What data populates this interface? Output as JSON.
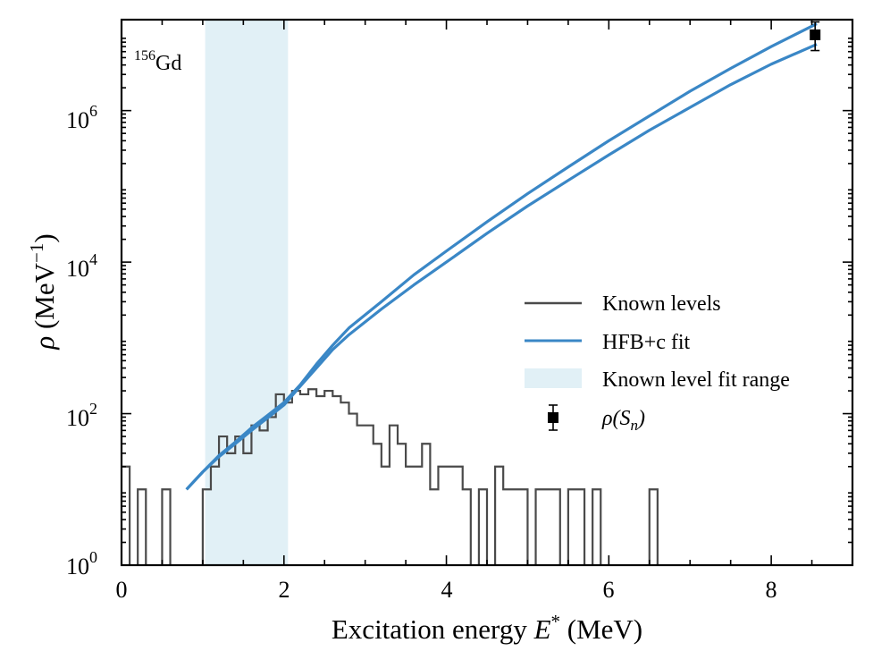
{
  "chart_data": {
    "type": "line",
    "yscale": "log",
    "xlim": [
      0,
      9
    ],
    "ylim_exponent": [
      0,
      7.2
    ],
    "xlabel": "Excitation energy",
    "xlabel_symbol": "E",
    "xlabel_sup": "*",
    "xlabel_unit": "(MeV)",
    "ylabel_symbol": "ρ",
    "ylabel_unit": "(MeV",
    "ylabel_sup": "−1",
    "x_ticks": [
      0,
      2,
      4,
      6,
      8
    ],
    "x_tick_labels": [
      "0",
      "2",
      "4",
      "6",
      "8"
    ],
    "y_tick_exponents": [
      0,
      2,
      4,
      6
    ],
    "y_tick_base": "10",
    "y_tick_sups": [
      "0",
      "2",
      "4",
      "6"
    ],
    "annotation": {
      "mass": "156",
      "element": "Gd"
    },
    "colors": {
      "known": "#4a4a4a",
      "hfb": "#3a87c6",
      "range": "#e1f0f6",
      "point": "#000000"
    },
    "legend": {
      "known_levels": "Known levels",
      "hfb": "HFB+c fit",
      "range": "Known level fit range",
      "rho_sn_symbol": "ρ",
      "rho_sn_open": "(S",
      "rho_sn_sub": "n",
      "rho_sn_close": ")"
    },
    "fit_range": [
      1.03,
      2.05
    ],
    "known_levels": {
      "bin_edges": [
        0.0,
        0.1,
        0.2,
        0.3,
        0.4,
        0.5,
        0.6,
        0.7,
        0.8,
        0.9,
        1.0,
        1.1,
        1.2,
        1.3,
        1.4,
        1.5,
        1.6,
        1.7,
        1.8,
        1.9,
        2.0,
        2.1,
        2.2,
        2.3,
        2.4,
        2.5,
        2.6,
        2.7,
        2.8,
        2.9,
        3.0,
        3.1,
        3.2,
        3.3,
        3.4,
        3.5,
        3.6,
        3.7,
        3.8,
        3.9,
        4.0,
        4.1,
        4.2,
        4.3,
        4.4,
        4.5,
        4.6,
        4.7,
        4.8,
        4.9,
        5.0,
        5.1,
        5.2,
        5.3,
        5.4,
        5.5,
        5.6,
        5.7,
        5.8,
        5.9,
        6.0,
        6.1,
        6.2,
        6.3,
        6.4,
        6.5,
        6.6
      ],
      "counts": [
        20,
        0,
        10,
        0,
        0,
        10,
        0,
        0,
        0,
        0,
        10,
        20,
        50,
        30,
        50,
        30,
        70,
        60,
        90,
        180,
        140,
        200,
        180,
        210,
        170,
        200,
        170,
        140,
        100,
        70,
        70,
        40,
        20,
        70,
        40,
        20,
        20,
        40,
        10,
        20,
        20,
        20,
        10,
        0,
        10,
        0,
        20,
        10,
        10,
        10,
        0,
        10,
        10,
        10,
        0,
        10,
        10,
        0,
        10,
        0,
        0,
        0,
        0,
        0,
        0,
        10,
        0
      ]
    },
    "hfb_upper": {
      "x": [
        0.8,
        1.0,
        1.2,
        1.4,
        1.6,
        1.8,
        2.0,
        2.2,
        2.4,
        2.6,
        2.8,
        3.2,
        3.6,
        4.0,
        4.5,
        5.0,
        5.5,
        6.0,
        6.5,
        7.0,
        7.5,
        8.0,
        8.56
      ],
      "y": [
        10,
        17,
        28,
        42,
        65,
        95,
        140,
        240,
        450,
        800,
        1350,
        3000,
        6800,
        14000,
        34000,
        80000,
        180000,
        400000,
        850000,
        1800000,
        3600000,
        7000000,
        14000000
      ]
    },
    "hfb_lower": {
      "x": [
        0.8,
        1.0,
        1.2,
        1.4,
        1.6,
        1.8,
        2.0,
        2.2,
        2.4,
        2.6,
        2.8,
        3.2,
        3.6,
        4.0,
        4.5,
        5.0,
        5.5,
        6.0,
        6.5,
        7.0,
        7.5,
        8.0,
        8.56
      ],
      "y": [
        10,
        17,
        27,
        40,
        60,
        88,
        130,
        230,
        400,
        700,
        1100,
        2400,
        5000,
        10000,
        24000,
        55000,
        120000,
        260000,
        550000,
        1100000,
        2200000,
        4100000,
        7500000
      ]
    },
    "rho_sn_point": {
      "x": 8.54,
      "y": 10000000,
      "y_err_low": 6200000,
      "y_err_high": 14800000
    }
  }
}
